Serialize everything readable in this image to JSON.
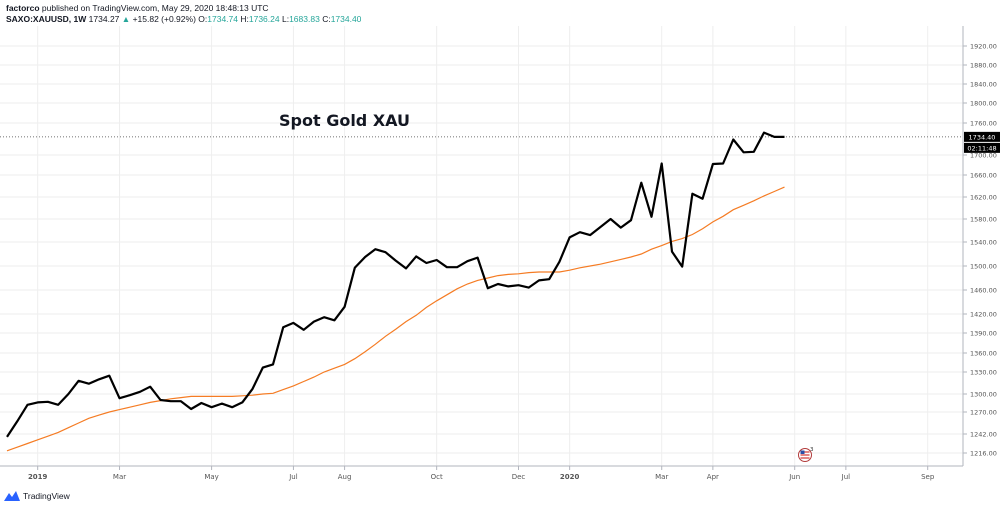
{
  "header": {
    "publisher_line": "factorco published on TradingView.com, May 29, 2020 18:48:13 UTC",
    "publisher_name": "factorco",
    "publisher_rest": "published on TradingView.com, May 29, 2020 18:48:13 UTC",
    "symbol": "SAXO:XAUUSD, 1W",
    "last": "1734.27",
    "change": "+15.82 (+0.92%)",
    "open_label": "O:",
    "open": "1734.74",
    "high_label": "H:",
    "high": "1736.24",
    "low_label": "L:",
    "low": "1683.83",
    "close_label": "C:",
    "close": "1734.40"
  },
  "brand": {
    "name": "TradingView"
  },
  "colors": {
    "price": "#000000",
    "ma": "#f57c24",
    "grid": "#e6e6e6",
    "badge": "#000000"
  },
  "chart_data": {
    "type": "line",
    "title": "Spot Gold XAU",
    "y_ticks": [
      1216,
      1242,
      1270,
      1300,
      1330,
      1360,
      1390,
      1420,
      1460,
      1500,
      1540,
      1580,
      1620,
      1660,
      1700,
      1760,
      1800,
      1840,
      1880,
      1920
    ],
    "y_tick_labels": [
      "1216.00",
      "1242.00",
      "1270.00",
      "1300.00",
      "1330.00",
      "1360.00",
      "1390.00",
      "1420.00",
      "1460.00",
      "1500.00",
      "1540.00",
      "1580.00",
      "1620.00",
      "1660.00",
      "1700.00",
      "1760.00",
      "1800.00",
      "1840.00",
      "1880.00",
      "1920.00"
    ],
    "x_labels": [
      "2019",
      "Mar",
      "May",
      "Jul",
      "Aug",
      "Oct",
      "Dec",
      "2020",
      "Mar",
      "Apr",
      "Jun",
      "Jul",
      "Sep"
    ],
    "x_label_bold": [
      true,
      false,
      false,
      false,
      false,
      false,
      false,
      true,
      false,
      false,
      false,
      false,
      false
    ],
    "x_label_index": [
      3,
      11,
      20,
      28,
      33,
      42,
      50,
      55,
      64,
      69,
      77,
      82,
      90
    ],
    "last_price_label": "1734.40",
    "countdown_label": "02:11:48",
    "series": [
      {
        "name": "price",
        "values": [
          1238,
          1258,
          1282,
          1286,
          1287,
          1282,
          1300,
          1318,
          1314,
          1320,
          1325,
          1293,
          1298,
          1303,
          1310,
          1290,
          1288,
          1288,
          1275,
          1285,
          1278,
          1284,
          1278,
          1286,
          1307,
          1337,
          1342,
          1399,
          1406,
          1395,
          1408,
          1415,
          1410,
          1432,
          1497,
          1515,
          1528,
          1523,
          1509,
          1496,
          1516,
          1505,
          1510,
          1498,
          1498,
          1508,
          1514,
          1463,
          1470,
          1466,
          1468,
          1464,
          1476,
          1478,
          1507,
          1548,
          1557,
          1552,
          1566,
          1580,
          1565,
          1578,
          1646,
          1584,
          1683,
          1524,
          1499,
          1626,
          1617,
          1682,
          1683,
          1729,
          1705,
          1706,
          1742,
          1734,
          1734
        ]
      },
      {
        "name": "ma",
        "values": [
          1219,
          1224,
          1229,
          1234,
          1239,
          1244,
          1250,
          1256,
          1262,
          1266,
          1270,
          1274,
          1278,
          1282,
          1286,
          1289,
          1292,
          1294,
          1296,
          1296,
          1296,
          1296,
          1296,
          1297,
          1298,
          1300,
          1301,
          1306,
          1311,
          1317,
          1323,
          1330,
          1336,
          1342,
          1351,
          1362,
          1373,
          1385,
          1396,
          1408,
          1418,
          1431,
          1442,
          1452,
          1462,
          1470,
          1476,
          1480,
          1484,
          1486,
          1487,
          1489,
          1490,
          1490,
          1490,
          1493,
          1497,
          1500,
          1503,
          1507,
          1511,
          1515,
          1520,
          1528,
          1534,
          1541,
          1546,
          1553,
          1563,
          1575,
          1585,
          1597,
          1605,
          1613,
          1622,
          1630,
          1638
        ]
      }
    ],
    "ylim": [
      1200,
      1950
    ],
    "grid": true
  }
}
